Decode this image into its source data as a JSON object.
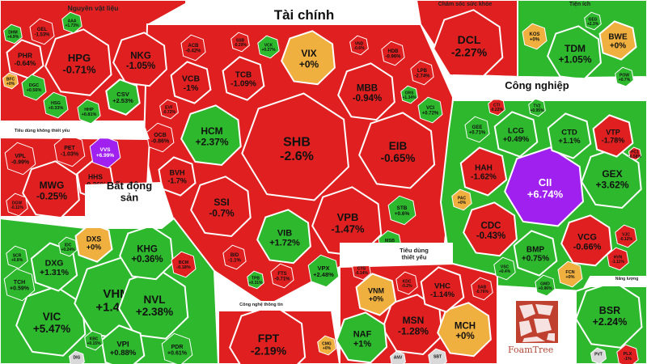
{
  "chart_data": {
    "type": "treemap",
    "title": "",
    "colors": {
      "up": "#2eb82e",
      "down": "#e02020",
      "flat": "#f0b040",
      "ceiling": "#a020f0",
      "background": "#ffffff"
    },
    "sectors": [
      {
        "name": "Nguyên vật liệu",
        "stocks": [
          {
            "ticker": "HPG",
            "change": "-0.71%"
          },
          {
            "ticker": "NKG",
            "change": "-1.05%"
          },
          {
            "ticker": "PHR",
            "change": "-0.64%"
          },
          {
            "ticker": "GEL",
            "change": "-1.53%"
          },
          {
            "ticker": "AAA",
            "change": "+1.73%"
          },
          {
            "ticker": "DHM",
            "change": "+4.9%"
          },
          {
            "ticker": "DGC",
            "change": "+0.56%"
          },
          {
            "ticker": "CSV",
            "change": "+2.53%"
          },
          {
            "ticker": "HSG",
            "change": "+0.33%"
          },
          {
            "ticker": "HHP",
            "change": "+0.81%"
          },
          {
            "ticker": "BFC",
            "change": "+0%"
          }
        ]
      },
      {
        "name": "Tài chính",
        "stocks": [
          {
            "ticker": "SHB",
            "change": "-2.6%"
          },
          {
            "ticker": "EIB",
            "change": "-0.65%"
          },
          {
            "ticker": "VPB",
            "change": "-1.47%"
          },
          {
            "ticker": "SSI",
            "change": "-0.7%"
          },
          {
            "ticker": "HCM",
            "change": "+2.37%"
          },
          {
            "ticker": "VIB",
            "change": "+1.72%"
          },
          {
            "ticker": "MBB",
            "change": "-0.94%"
          },
          {
            "ticker": "VIX",
            "change": "+0%"
          },
          {
            "ticker": "VCB",
            "change": "-1%"
          },
          {
            "ticker": "TCB",
            "change": "-1.09%"
          },
          {
            "ticker": "BVH",
            "change": "-1.7%"
          },
          {
            "ticker": "OCB",
            "change": "-0.86%"
          },
          {
            "ticker": "ACB",
            "change": "-0.42%"
          },
          {
            "ticker": "VCK",
            "change": "+0.27%"
          },
          {
            "ticker": "VND",
            "change": "-0.6%"
          },
          {
            "ticker": "HDB",
            "change": "-0.96%"
          },
          {
            "ticker": "LPB",
            "change": "-2.74%"
          },
          {
            "ticker": "VCI",
            "change": "+0.72%"
          },
          {
            "ticker": "STB",
            "change": "+0.6%"
          },
          {
            "ticker": "MSB",
            "change": "+0.38%"
          },
          {
            "ticker": "VPX",
            "change": "+2.48%"
          },
          {
            "ticker": "FTS",
            "change": "-0.71%"
          },
          {
            "ticker": "BID",
            "change": "-1.1%"
          },
          {
            "ticker": "TPB",
            "change": "+0.31%"
          },
          {
            "ticker": "CTG",
            "change": "-0.14%"
          },
          {
            "ticker": "EVF",
            "change": "-0.72%"
          },
          {
            "ticker": "SSB",
            "change": "-0.29%"
          },
          {
            "ticker": "ORS",
            "change": "+1.34%"
          }
        ]
      },
      {
        "name": "Chăm sóc sức khỏe",
        "stocks": [
          {
            "ticker": "DCL",
            "change": "-2.27%"
          }
        ]
      },
      {
        "name": "Tiện ích",
        "stocks": [
          {
            "ticker": "TDM",
            "change": "+1.05%"
          },
          {
            "ticker": "BWE",
            "change": "+0%"
          },
          {
            "ticker": "KOS",
            "change": "+0%"
          },
          {
            "ticker": "GEG",
            "change": "+2.3%"
          },
          {
            "ticker": "POW",
            "change": "+0.7%"
          }
        ]
      },
      {
        "name": "Công nghiệp",
        "stocks": [
          {
            "ticker": "CII",
            "change": "+6.74%"
          },
          {
            "ticker": "GEX",
            "change": "+3.62%"
          },
          {
            "ticker": "CDC",
            "change": "-0.43%"
          },
          {
            "ticker": "VCG",
            "change": "-0.66%"
          },
          {
            "ticker": "BMP",
            "change": "+0.75%"
          },
          {
            "ticker": "HAH",
            "change": "-1.62%"
          },
          {
            "ticker": "LCG",
            "change": "+0.49%"
          },
          {
            "ticker": "CTD",
            "change": "+1.1%"
          },
          {
            "ticker": "VTP",
            "change": "-1.78%"
          },
          {
            "ticker": "GEE",
            "change": "+0.71%"
          },
          {
            "ticker": "VJC",
            "change": "-0.12%"
          },
          {
            "ticker": "HVN",
            "change": "-1.11%"
          },
          {
            "ticker": "FCN",
            "change": "+0%"
          },
          {
            "ticker": "VSC",
            "change": "+0.4%"
          },
          {
            "ticker": "PAC",
            "change": "+0%"
          },
          {
            "ticker": "GMD",
            "change": "+0.96%"
          },
          {
            "ticker": "CTI",
            "change": "-0.22%"
          },
          {
            "ticker": "TV2",
            "change": "+0.95%"
          },
          {
            "ticker": "PC1",
            "change": "-0.58%"
          }
        ]
      },
      {
        "name": "Tiêu dùng không thiết yếu",
        "stocks": [
          {
            "ticker": "MWG",
            "change": "-0.25%"
          },
          {
            "ticker": "HHS",
            "change": "-0.36%"
          },
          {
            "ticker": "VVS",
            "change": "+6.99%"
          },
          {
            "ticker": "VPL",
            "change": "-0.99%"
          },
          {
            "ticker": "PET",
            "change": "-1.03%"
          },
          {
            "ticker": "DGW",
            "change": "-0.11%"
          }
        ]
      },
      {
        "name": "Bất động sản",
        "stocks": [
          {
            "ticker": "VIC",
            "change": "+5.47%"
          },
          {
            "ticker": "VHM",
            "change": "+1.49%"
          },
          {
            "ticker": "NVL",
            "change": "+2.38%"
          },
          {
            "ticker": "DXG",
            "change": "+1.31%"
          },
          {
            "ticker": "KHG",
            "change": "+0.36%"
          },
          {
            "ticker": "DXS",
            "change": "+0%"
          },
          {
            "ticker": "VPI",
            "change": "+0.88%"
          },
          {
            "ticker": "TCH",
            "change": "+0.59%"
          },
          {
            "ticker": "SCR",
            "change": "+0.8%"
          },
          {
            "ticker": "BCM",
            "change": "-0.18%"
          },
          {
            "ticker": "PDR",
            "change": "+0.61%"
          },
          {
            "ticker": "KBC",
            "change": "+0.15%"
          },
          {
            "ticker": "IDC",
            "change": "+0.24%"
          },
          {
            "ticker": "DIG",
            "change": ""
          }
        ]
      },
      {
        "name": "Tiêu dùng thiết yếu",
        "stocks": [
          {
            "ticker": "MSN",
            "change": "-1.28%"
          },
          {
            "ticker": "MCH",
            "change": "+0%"
          },
          {
            "ticker": "VHC",
            "change": "-1.14%"
          },
          {
            "ticker": "NAF",
            "change": "+1%"
          },
          {
            "ticker": "VNM",
            "change": "+0%"
          },
          {
            "ticker": "KDC",
            "change": "-0.2%"
          },
          {
            "ticker": "SAB",
            "change": "-0.76%"
          },
          {
            "ticker": "SBT",
            "change": ""
          },
          {
            "ticker": "ANV",
            "change": ""
          }
        ]
      },
      {
        "name": "Công nghệ thông tin",
        "stocks": [
          {
            "ticker": "FPT",
            "change": "-2.19%"
          },
          {
            "ticker": "CMG",
            "change": "+0%"
          }
        ]
      },
      {
        "name": "Năng lượng",
        "stocks": [
          {
            "ticker": "BSR",
            "change": "+2.24%"
          },
          {
            "ticker": "PLX",
            "change": "-1%"
          },
          {
            "ticker": "PVT",
            "change": ""
          }
        ]
      }
    ],
    "logo_text": "FoamTree"
  }
}
